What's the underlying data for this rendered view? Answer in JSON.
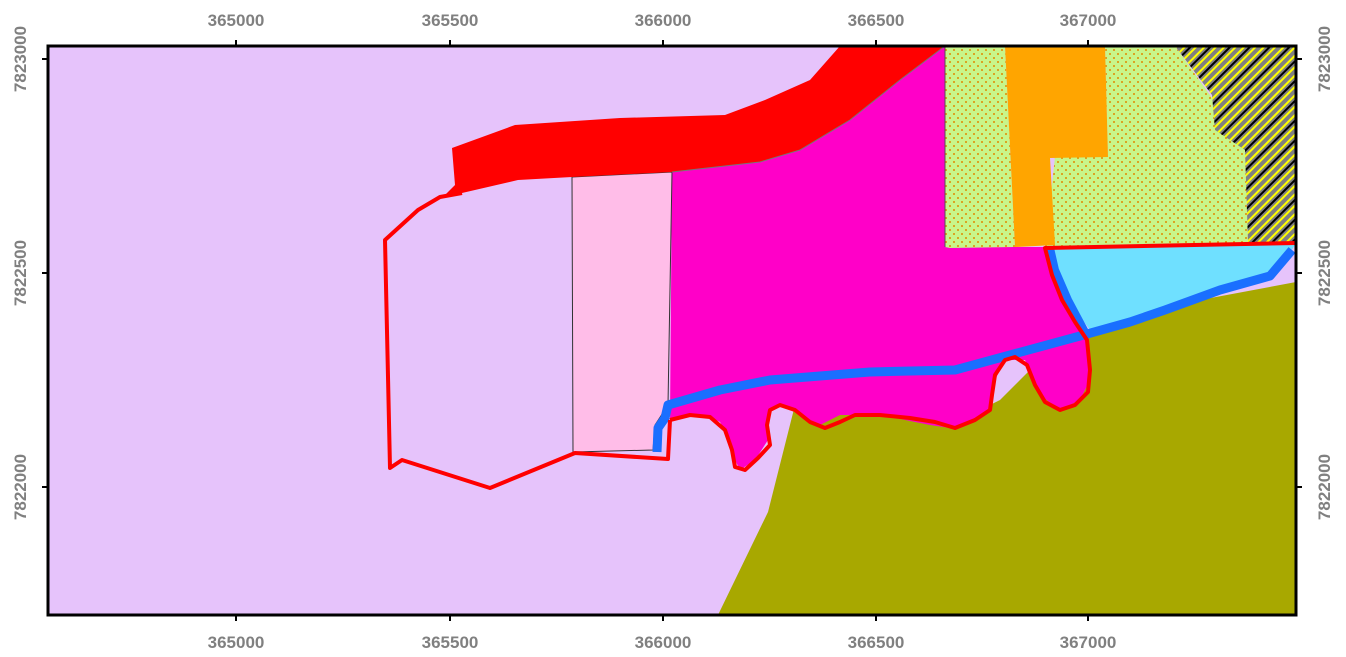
{
  "map": {
    "x_ticks": [
      {
        "id": "x-365000",
        "label": "365000"
      },
      {
        "id": "x-365500",
        "label": "365500"
      },
      {
        "id": "x-366000",
        "label": "366000"
      },
      {
        "id": "x-366500",
        "label": "366500"
      },
      {
        "id": "x-367000",
        "label": "367000"
      }
    ],
    "y_ticks": [
      {
        "id": "y-7823000",
        "label": "7823000"
      },
      {
        "id": "y-7822500",
        "label": "7822500"
      },
      {
        "id": "y-7822000",
        "label": "7822000"
      }
    ],
    "colors": {
      "background_lavender": "#e6c3fb",
      "red_band": "#ff0000",
      "magenta_zone": "#ff00c8",
      "light_pink_strip": "#ffbde8",
      "dotted_green": "#c8f58a",
      "dot_orange": "#e08a00",
      "orange_block": "#ffa500",
      "light_cyan": "#6fe0ff",
      "blue_channel": "#1a6fff",
      "olive_zone": "#a8a800",
      "hatch_gray": "#808080",
      "hatch_yellow": "#ffff00",
      "boundary_red": "#ff0000"
    }
  }
}
